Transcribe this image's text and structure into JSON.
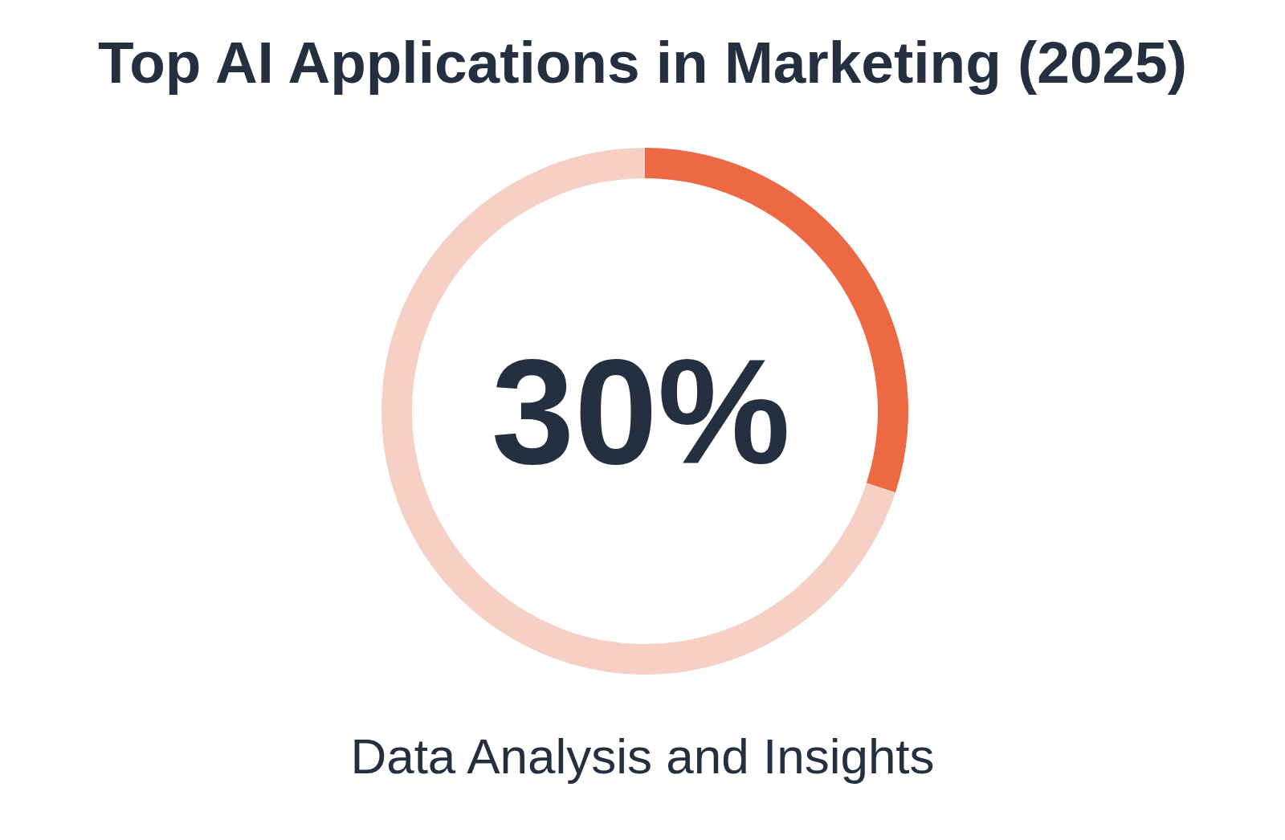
{
  "chart_data": {
    "type": "donut",
    "title": "Top AI Applications in Marketing (2025)",
    "categories": [
      null,
      null
    ],
    "values": [
      30,
      70
    ],
    "colors": [
      "#ec6944",
      "#f6d0c4"
    ],
    "annotations": [
      "30%",
      "Data Analysis and Insights"
    ],
    "legend": false
  }
}
